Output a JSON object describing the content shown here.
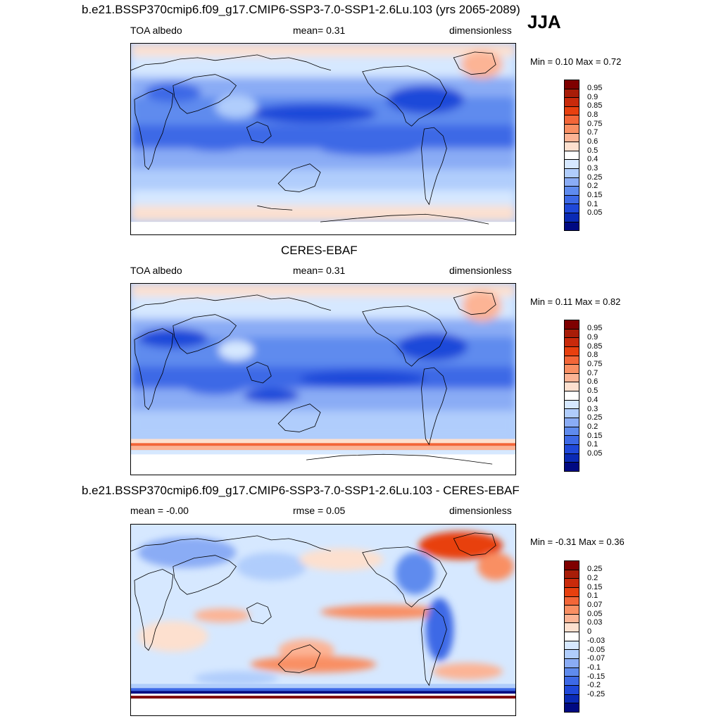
{
  "season": "JJA",
  "panels": [
    {
      "title": "b.e21.BSSP370cmip6.f09_g17.CMIP6-SSP3-7.0-SSP1-2.6Lu.103 (yrs 2065-2089)",
      "left_label": "TOA albedo",
      "center_label": "mean=   0.31",
      "right_label": "dimensionless",
      "minmax": "Min =   0.10 Max =   0.72",
      "scale": "abs"
    },
    {
      "title": "CERES-EBAF",
      "left_label": "TOA albedo",
      "center_label": "mean=   0.31",
      "right_label": "dimensionless",
      "minmax": "Min =   0.11 Max =   0.82",
      "scale": "abs"
    },
    {
      "title": "b.e21.BSSP370cmip6.f09_g17.CMIP6-SSP3-7.0-SSP1-2.6Lu.103 - CERES-EBAF",
      "left_label": "mean =  -0.00",
      "center_label": "rmse =   0.05",
      "right_label": "dimensionless",
      "minmax": "Min =  -0.31 Max =   0.36",
      "scale": "diff"
    }
  ],
  "colorbars": {
    "abs": {
      "labels": [
        "0.95",
        "0.9",
        "0.85",
        "0.8",
        "0.75",
        "0.7",
        "0.6",
        "0.5",
        "0.4",
        "0.3",
        "0.25",
        "0.2",
        "0.15",
        "0.1",
        "0.05"
      ],
      "colors": [
        "#7f0000",
        "#a81d08",
        "#c92a0b",
        "#e8400f",
        "#f36638",
        "#f98f63",
        "#fcb495",
        "#fde0cf",
        "#ffffff",
        "#d6e8ff",
        "#b0cdfc",
        "#8aacf5",
        "#5f8bee",
        "#3d69e6",
        "#1f48d9",
        "#0a2ab5",
        "#000a82"
      ]
    },
    "diff": {
      "labels": [
        "0.25",
        "0.2",
        "0.15",
        "0.1",
        "0.07",
        "0.05",
        "0.03",
        "0",
        "-0.03",
        "-0.05",
        "-0.07",
        "-0.1",
        "-0.15",
        "-0.2",
        "-0.25"
      ],
      "colors": [
        "#7f0000",
        "#a81d08",
        "#c92a0b",
        "#e8400f",
        "#f36638",
        "#f98f63",
        "#fcb495",
        "#fde0cf",
        "#ffffff",
        "#d6e8ff",
        "#b0cdfc",
        "#8aacf5",
        "#5f8bee",
        "#3d69e6",
        "#1f48d9",
        "#0a2ab5",
        "#000a82"
      ]
    }
  }
}
